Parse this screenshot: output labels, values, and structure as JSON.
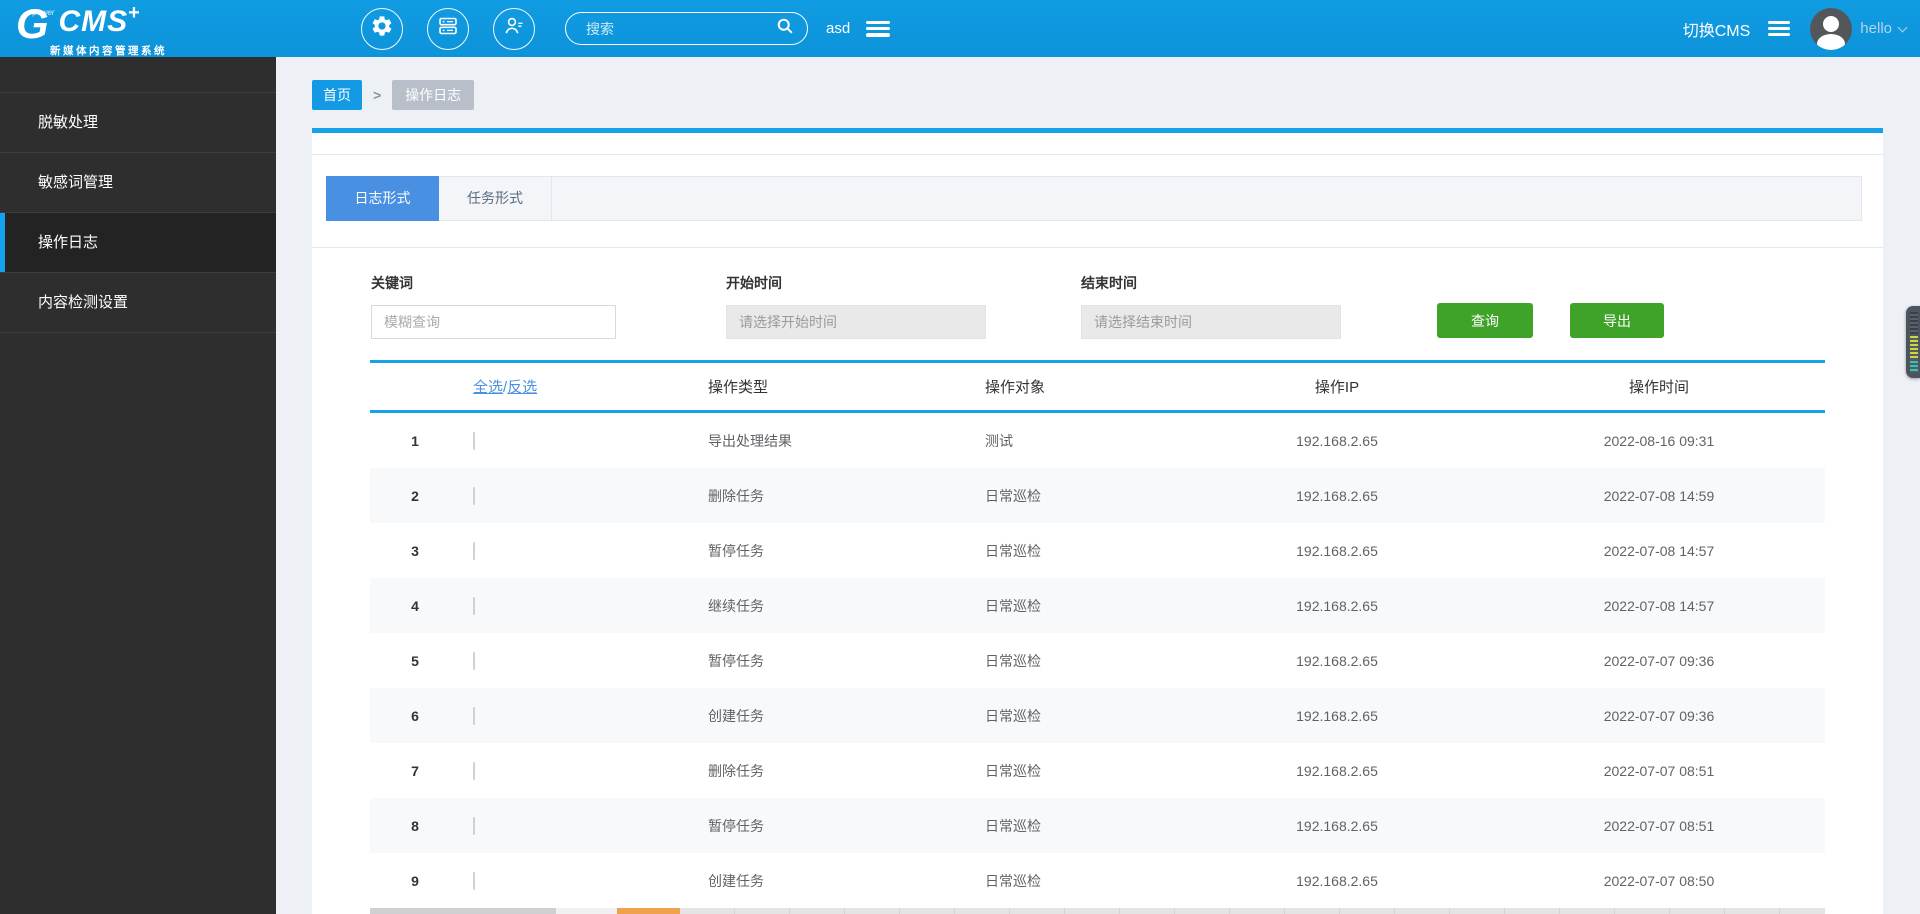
{
  "header": {
    "logo": {
      "g": "G",
      "power": "power",
      "cms": "CMS",
      "plus": "+",
      "subtitle": "新媒体内容管理系统"
    },
    "icons": [
      "settings-gear",
      "modules-server",
      "user-list"
    ],
    "search_placeholder": "搜索",
    "username_short": "asd",
    "switch_cms_label": "切换CMS",
    "user_name": "hello"
  },
  "sidebar": {
    "items": [
      {
        "id": "desensitize",
        "label": "脱敏处理",
        "active": false
      },
      {
        "id": "sensitive-words",
        "label": "敏感词管理",
        "active": false
      },
      {
        "id": "operation-log",
        "label": "操作日志",
        "active": true
      },
      {
        "id": "content-detection",
        "label": "内容检测设置",
        "active": false
      }
    ]
  },
  "breadcrumb": {
    "home": "首页",
    "separator": ">",
    "current": "操作日志"
  },
  "tabs": [
    {
      "id": "log-form",
      "label": "日志形式",
      "active": true
    },
    {
      "id": "task-form",
      "label": "任务形式",
      "active": false
    }
  ],
  "filters": {
    "keyword_label": "关键词",
    "keyword_placeholder": "模糊查询",
    "start_label": "开始时间",
    "start_placeholder": "请选择开始时间",
    "end_label": "结束时间",
    "end_placeholder": "请选择结束时间",
    "query_button": "查询",
    "export_button": "导出"
  },
  "table": {
    "select_all": "全选",
    "slash": "/",
    "select_invert": "反选",
    "headers": {
      "type": "操作类型",
      "target": "操作对象",
      "ip": "操作IP",
      "time": "操作时间"
    },
    "rows": [
      {
        "num": "1",
        "type": "导出处理结果",
        "target": "测试",
        "ip": "192.168.2.65",
        "time": "2022-08-16 09:31"
      },
      {
        "num": "2",
        "type": "删除任务",
        "target": "日常巡检",
        "ip": "192.168.2.65",
        "time": "2022-07-08 14:59"
      },
      {
        "num": "3",
        "type": "暂停任务",
        "target": "日常巡检",
        "ip": "192.168.2.65",
        "time": "2022-07-08 14:57"
      },
      {
        "num": "4",
        "type": "继续任务",
        "target": "日常巡检",
        "ip": "192.168.2.65",
        "time": "2022-07-08 14:57"
      },
      {
        "num": "5",
        "type": "暂停任务",
        "target": "日常巡检",
        "ip": "192.168.2.65",
        "time": "2022-07-07 09:36"
      },
      {
        "num": "6",
        "type": "创建任务",
        "target": "日常巡检",
        "ip": "192.168.2.65",
        "time": "2022-07-07 09:36"
      },
      {
        "num": "7",
        "type": "删除任务",
        "target": "日常巡检",
        "ip": "192.168.2.65",
        "time": "2022-07-07 08:51"
      },
      {
        "num": "8",
        "type": "暂停任务",
        "target": "日常巡检",
        "ip": "192.168.2.65",
        "time": "2022-07-07 08:51"
      },
      {
        "num": "9",
        "type": "创建任务",
        "target": "日常巡检",
        "ip": "192.168.2.65",
        "time": "2022-07-07 08:50"
      }
    ]
  },
  "colors": {
    "header_blue": "#0d93da",
    "accent_blue": "#15a2e8",
    "tab_active_blue": "#4a90e2",
    "crumb_blue": "#1499e4",
    "crumb_gray": "#b9bfc8",
    "button_green": "#3fa32a",
    "sidebar_dark": "#2e2e2e",
    "active_bar_blue": "#12a3f0",
    "pager_orange": "#efa14f"
  }
}
